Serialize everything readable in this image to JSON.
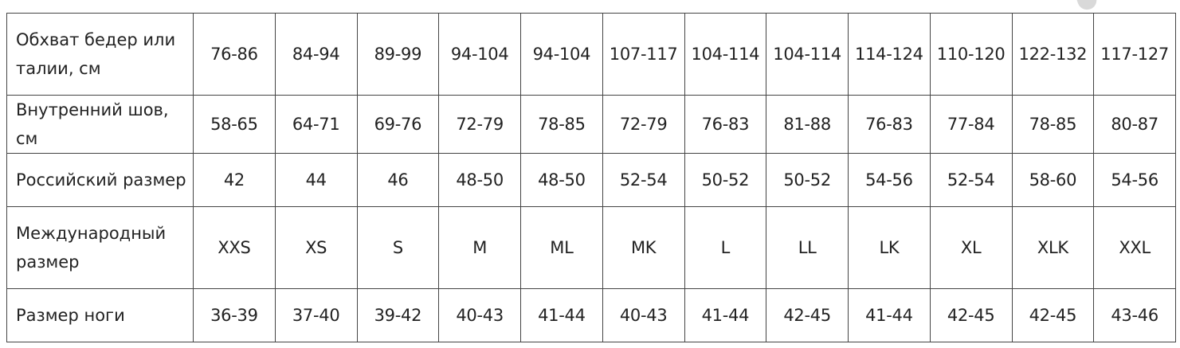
{
  "size_chart": {
    "rows": [
      {
        "label": "Обхват бедер или талии, см",
        "values": [
          "76-86",
          "84-94",
          "89-99",
          "94-104",
          "94-104",
          "107-117",
          "104-114",
          "104-114",
          "114-124",
          "110-120",
          "122-132",
          "117-127"
        ]
      },
      {
        "label": "Внутренний шов, см",
        "values": [
          "58-65",
          "64-71",
          "69-76",
          "72-79",
          "78-85",
          "72-79",
          "76-83",
          "81-88",
          "76-83",
          "77-84",
          "78-85",
          "80-87"
        ]
      },
      {
        "label": "Российский размер",
        "values": [
          "42",
          "44",
          "46",
          "48-50",
          "48-50",
          "52-54",
          "50-52",
          "50-52",
          "54-56",
          "52-54",
          "58-60",
          "54-56"
        ]
      },
      {
        "label": "Международный размер",
        "values": [
          "XXS",
          "XS",
          "S",
          "M",
          "ML",
          "MK",
          "L",
          "LL",
          "LK",
          "XL",
          "XLK",
          "XXL"
        ]
      },
      {
        "label": "Размер ноги",
        "values": [
          "36-39",
          "37-40",
          "39-42",
          "40-43",
          "41-44",
          "40-43",
          "41-44",
          "42-45",
          "41-44",
          "42-45",
          "42-45",
          "43-46"
        ]
      }
    ]
  }
}
